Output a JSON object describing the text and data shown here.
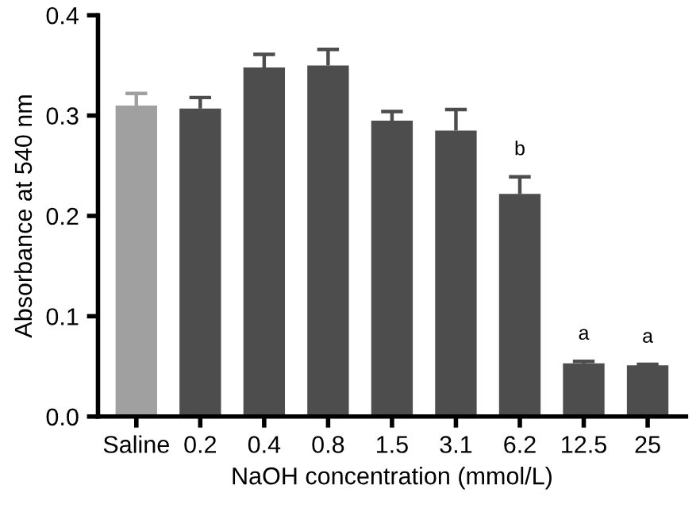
{
  "chart_data": {
    "type": "bar",
    "xlabel": "NaOH concentration (mmol/L)",
    "ylabel": "Absorbance at 540 nm",
    "categories": [
      "Saline",
      "0.2",
      "0.4",
      "0.8",
      "1.5",
      "3.1",
      "6.2",
      "12.5",
      "25"
    ],
    "values": [
      0.31,
      0.307,
      0.348,
      0.35,
      0.295,
      0.285,
      0.222,
      0.053,
      0.051
    ],
    "errors": [
      [
        0.31,
        0.322
      ],
      [
        0.307,
        0.318
      ],
      [
        0.348,
        0.361
      ],
      [
        0.35,
        0.366
      ],
      [
        0.295,
        0.304
      ],
      [
        0.285,
        0.306
      ],
      [
        0.222,
        0.239
      ],
      [
        0.053,
        0.055
      ],
      [
        0.051,
        0.052
      ]
    ],
    "colors": [
      "#a0a0a0",
      "#4d4d4d",
      "#4d4d4d",
      "#4d4d4d",
      "#4d4d4d",
      "#4d4d4d",
      "#4d4d4d",
      "#4d4d4d",
      "#4d4d4d"
    ],
    "ylim": [
      0,
      0.4
    ],
    "yticks": [
      {
        "value": 0,
        "label": "0.0"
      },
      0.1,
      0.2,
      0.3,
      0.4
    ],
    "annotations": [
      {
        "text": "b",
        "x": "6.2",
        "y": 0.239
      },
      {
        "text": "a",
        "x": "12.5",
        "y": 0.055
      },
      {
        "text": "a",
        "x": "25",
        "y": 0.052
      }
    ],
    "grid": false,
    "legend": false
  }
}
